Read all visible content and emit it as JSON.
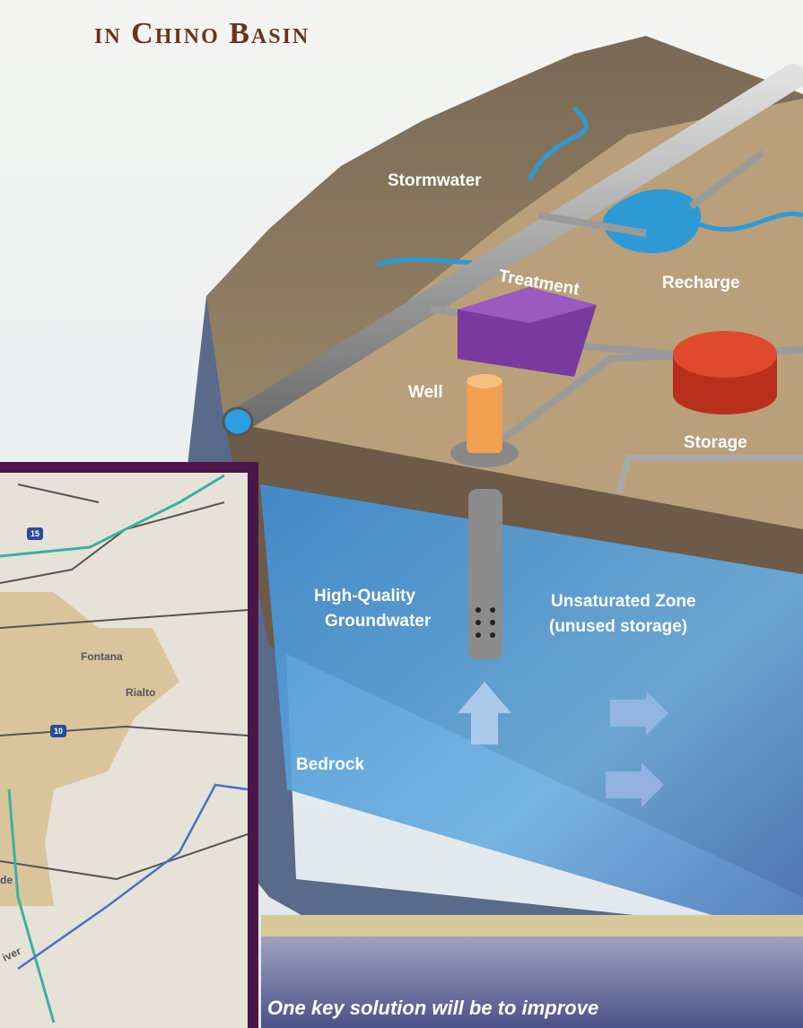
{
  "header": {
    "title": "in Chino Basin"
  },
  "diagram": {
    "stormwater": "Stormwater",
    "treatment": "Treatment",
    "recharge": "Recharge",
    "well": "Well",
    "storage": "Storage",
    "groundwater": [
      "High-Quality",
      "Groundwater"
    ],
    "unsaturated": [
      "Unsaturated Zone",
      "(unused storage)"
    ],
    "bedrock": "Bedrock"
  },
  "map": {
    "places": [
      "Fontana",
      "Rialto",
      "de",
      "iver"
    ],
    "routes": [
      "15",
      "10"
    ]
  },
  "caption": "One key solution will be to improve"
}
